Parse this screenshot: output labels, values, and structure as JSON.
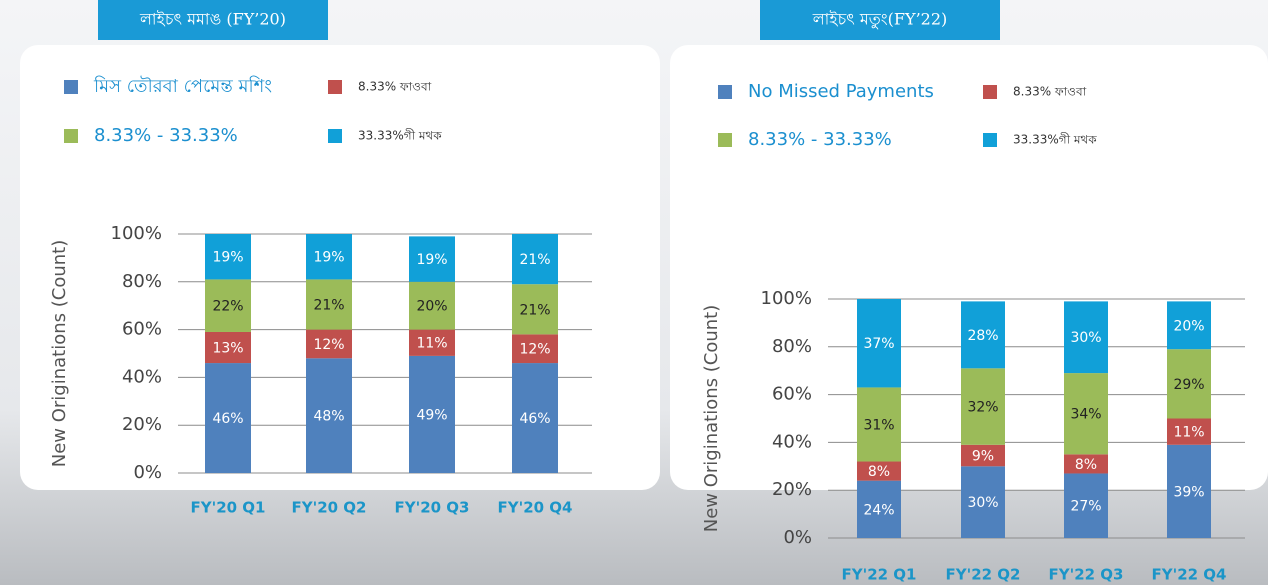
{
  "chart_data": [
    {
      "type": "bar",
      "stacked": true,
      "title": "লাইচৎ মমাঙ (FY’20)",
      "y_label": "New Originations (Count)",
      "categories": [
        "FY'20 Q1",
        "FY'20 Q2",
        "FY'20 Q3",
        "FY'20 Q4"
      ],
      "series": [
        {
          "name": "মিস তৌরবা পেমেন্ত মশিং",
          "color": "#4f81bd",
          "values": [
            46,
            48,
            49,
            46
          ],
          "value_labels": [
            "46%",
            "48%",
            "49%",
            "46%"
          ]
        },
        {
          "name": "8.33% ফাওবা",
          "color": "#c0504d",
          "values": [
            13,
            12,
            11,
            12
          ],
          "value_labels": [
            "13%",
            "12%",
            "11%",
            "12%"
          ]
        },
        {
          "name": "8.33% - 33.33%",
          "color": "#9bbb59",
          "values": [
            22,
            21,
            20,
            21
          ],
          "value_labels": [
            "22%",
            "21%",
            "20%",
            "21%"
          ]
        },
        {
          "name": "33.33%গী মথক",
          "color": "#11a0d8",
          "values": [
            19,
            19,
            19,
            21
          ],
          "value_labels": [
            "19%",
            "19%",
            "19%",
            "21%"
          ]
        }
      ],
      "ylim": [
        0,
        100
      ],
      "yticks": [
        {
          "value": 0,
          "label": "0%"
        },
        {
          "value": 20,
          "label": "20%"
        },
        {
          "value": 40,
          "label": "40%"
        },
        {
          "value": 60,
          "label": "60%"
        },
        {
          "value": 80,
          "label": "80%"
        },
        {
          "value": 100,
          "label": "100%"
        }
      ],
      "grid": true
    },
    {
      "type": "bar",
      "stacked": true,
      "title": "লাইচৎ মতুং(FY’22)",
      "y_label": "New Originations (Count)",
      "categories": [
        "FY'22 Q1",
        "FY'22 Q2",
        "FY'22 Q3",
        "FY'22 Q4"
      ],
      "series": [
        {
          "name": "No Missed Payments",
          "color": "#4f81bd",
          "values": [
            24,
            30,
            27,
            39
          ],
          "value_labels": [
            "24%",
            "30%",
            "27%",
            "39%"
          ]
        },
        {
          "name": "8.33% ফাওবা",
          "color": "#c0504d",
          "values": [
            8,
            9,
            8,
            11
          ],
          "value_labels": [
            "8%",
            "9%",
            "8%",
            "11%"
          ]
        },
        {
          "name": "8.33% - 33.33%",
          "color": "#9bbb59",
          "values": [
            31,
            32,
            34,
            29
          ],
          "value_labels": [
            "31%",
            "32%",
            "34%",
            "29%"
          ]
        },
        {
          "name": "33.33%গী মথক",
          "color": "#11a0d8",
          "values": [
            37,
            28,
            30,
            20
          ],
          "value_labels": [
            "37%",
            "28%",
            "30%",
            "20%"
          ]
        }
      ],
      "ylim": [
        0,
        100
      ],
      "yticks": [
        {
          "value": 0,
          "label": "0%"
        },
        {
          "value": 20,
          "label": "20%"
        },
        {
          "value": 40,
          "label": "40%"
        },
        {
          "value": 60,
          "label": "60%"
        },
        {
          "value": 80,
          "label": "80%"
        },
        {
          "value": 100,
          "label": "100%"
        }
      ],
      "grid": true
    }
  ]
}
